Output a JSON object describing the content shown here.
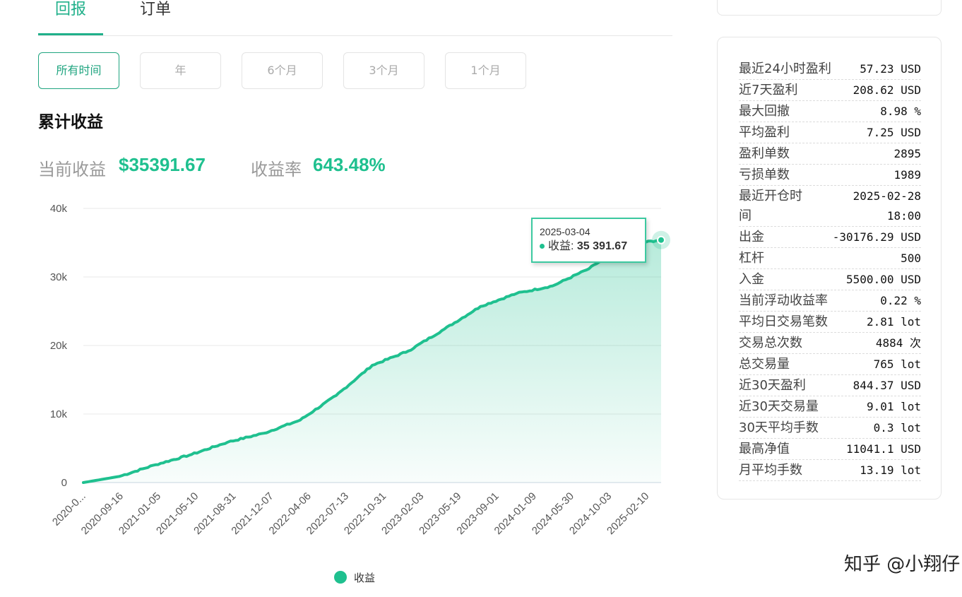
{
  "tabs": [
    {
      "label": "回报",
      "active": true
    },
    {
      "label": "订单",
      "active": false
    }
  ],
  "ranges": [
    {
      "label": "所有时间",
      "active": true
    },
    {
      "label": "年",
      "active": false
    },
    {
      "label": "6个月",
      "active": false
    },
    {
      "label": "3个月",
      "active": false
    },
    {
      "label": "1个月",
      "active": false
    }
  ],
  "section_title": "累计收益",
  "summary": {
    "current_label": "当前收益",
    "current_value": "$35391.67",
    "rate_label": "收益率",
    "rate_value": "643.48%"
  },
  "tooltip": {
    "date": "2025-03-04",
    "series_label": "收益:",
    "value": "35 391.67"
  },
  "legend": {
    "label": "收益",
    "color": "#1fc08f"
  },
  "stats": [
    {
      "k": "最近24小时盈利",
      "v": "57.23 USD"
    },
    {
      "k": "近7天盈利",
      "v": "208.62 USD"
    },
    {
      "k": "最大回撤",
      "v": "8.98 %"
    },
    {
      "k": "平均盈利",
      "v": "7.25 USD"
    },
    {
      "k": "盈利单数",
      "v": "2895"
    },
    {
      "k": "亏损单数",
      "v": "1989"
    },
    {
      "k": "最近开仓时\n间",
      "v": "2025-02-28\n18:00"
    },
    {
      "k": "出金",
      "v": "-30176.29 USD"
    },
    {
      "k": "杠杆",
      "v": "500"
    },
    {
      "k": "入金",
      "v": "5500.00 USD"
    },
    {
      "k": "当前浮动收益率",
      "v": "0.22 %"
    },
    {
      "k": "平均日交易笔数",
      "v": "2.81 lot"
    },
    {
      "k": "交易总次数",
      "v": "4884 次"
    },
    {
      "k": "总交易量",
      "v": "765 lot"
    },
    {
      "k": "近30天盈利",
      "v": "844.37 USD"
    },
    {
      "k": "近30天交易量",
      "v": "9.01 lot"
    },
    {
      "k": "30天平均手数",
      "v": "0.3 lot"
    },
    {
      "k": "最高净值",
      "v": "11041.1 USD"
    },
    {
      "k": "月平均手数",
      "v": "13.19 lot"
    }
  ],
  "watermark": "知乎 @小翔仔",
  "chart_data": {
    "type": "area",
    "title": "累计收益",
    "y_tick_labels": [
      "0",
      "10k",
      "20k",
      "30k",
      "40k"
    ],
    "y_ticks": [
      0,
      10000,
      20000,
      30000,
      40000
    ],
    "ylim": [
      0,
      40000
    ],
    "x_tick_labels": [
      "2020-0...",
      "2020-09-16",
      "2021-01-05",
      "2021-05-10",
      "2021-08-31",
      "2021-12-07",
      "2022-04-06",
      "2022-07-13",
      "2022-10-31",
      "2023-02-03",
      "2023-05-19",
      "2023-09-01",
      "2024-01-09",
      "2024-05-30",
      "2024-10-03",
      "2025-02-10"
    ],
    "grid": true,
    "legend_position": "bottom",
    "series": [
      {
        "name": "收益",
        "color": "#1fc08f",
        "x": [
          "2020-0...",
          "2020-09-16",
          "2021-01-05",
          "2021-05-10",
          "2021-08-31",
          "2021-12-07",
          "2022-04-06",
          "2022-07-13",
          "2022-10-31",
          "2023-02-03",
          "2023-05-19",
          "2023-09-01",
          "2024-01-09",
          "2024-05-30",
          "2024-10-03",
          "2025-02-10",
          "2025-03-04"
        ],
        "values": [
          0,
          900,
          2600,
          4100,
          5900,
          7200,
          9100,
          12700,
          17100,
          19200,
          22400,
          25700,
          27600,
          28700,
          31200,
          34700,
          35391.67
        ]
      }
    ]
  }
}
